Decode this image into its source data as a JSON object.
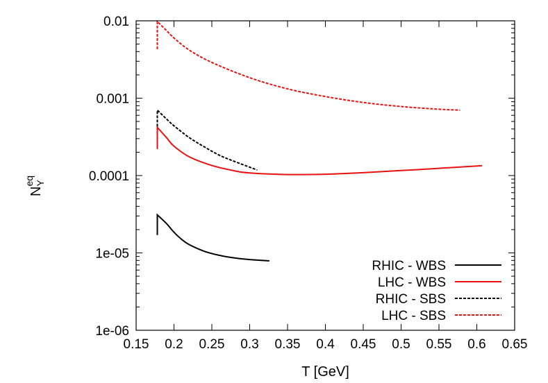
{
  "chart_data": {
    "type": "line",
    "title": "",
    "xlabel": "T [GeV]",
    "ylabel": "N_Y^eq",
    "ylabel_base": "N",
    "ylabel_sub": "Y",
    "ylabel_sup": "eq",
    "xlim": [
      0.15,
      0.65
    ],
    "ylim": [
      1e-06,
      0.01
    ],
    "yscale": "log",
    "grid": false,
    "legend_position": "bottom-right",
    "x_ticks": [
      0.15,
      0.2,
      0.25,
      0.3,
      0.35,
      0.4,
      0.45,
      0.5,
      0.55,
      0.6,
      0.65
    ],
    "x_tick_labels": [
      "0.15",
      "0.2",
      "0.25",
      "0.3",
      "0.35",
      "0.4",
      "0.45",
      "0.5",
      "0.55",
      "0.6",
      "0.65"
    ],
    "y_ticks": [
      1e-06,
      1e-05,
      0.0001,
      0.001,
      0.01
    ],
    "y_tick_labels": [
      "1e-06",
      "1e-05",
      "0.0001",
      "0.001",
      "0.01"
    ],
    "series": [
      {
        "name": "RHIC - WBS",
        "color": "#000000",
        "dash": "solid",
        "x": [
          0.178,
          0.178,
          0.19,
          0.2,
          0.21,
          0.22,
          0.24,
          0.26,
          0.28,
          0.3,
          0.326
        ],
        "y": [
          1.7e-05,
          3.1e-05,
          2.4e-05,
          1.85e-05,
          1.5e-05,
          1.28e-05,
          1.05e-05,
          9.3e-06,
          8.6e-06,
          8.2e-06,
          7.9e-06
        ]
      },
      {
        "name": "LHC - WBS",
        "color": "#e8110f",
        "dash": "solid",
        "x": [
          0.178,
          0.178,
          0.19,
          0.2,
          0.22,
          0.25,
          0.28,
          0.3,
          0.35,
          0.4,
          0.45,
          0.5,
          0.55,
          0.6,
          0.607
        ],
        "y": [
          0.00022,
          0.00042,
          0.00031,
          0.00024,
          0.000175,
          0.000135,
          0.000115,
          0.000108,
          0.000103,
          0.000104,
          0.000109,
          0.000116,
          0.000124,
          0.000133,
          0.000134
        ]
      },
      {
        "name": "RHIC - SBS",
        "color": "#000000",
        "dash": "dashed",
        "x": [
          0.178,
          0.178,
          0.19,
          0.2,
          0.22,
          0.24,
          0.26,
          0.28,
          0.31
        ],
        "y": [
          0.00043,
          0.0007,
          0.00054,
          0.00044,
          0.00031,
          0.000235,
          0.000183,
          0.000152,
          0.000118
        ]
      },
      {
        "name": "LHC - SBS",
        "color": "#e8110f",
        "dash": "dashed",
        "x": [
          0.178,
          0.178,
          0.19,
          0.2,
          0.22,
          0.25,
          0.3,
          0.35,
          0.4,
          0.45,
          0.5,
          0.55,
          0.578
        ],
        "y": [
          0.0043,
          0.0098,
          0.0075,
          0.006,
          0.0042,
          0.0029,
          0.00184,
          0.00132,
          0.00105,
          0.00088,
          0.00078,
          0.00072,
          0.0007
        ]
      }
    ]
  }
}
